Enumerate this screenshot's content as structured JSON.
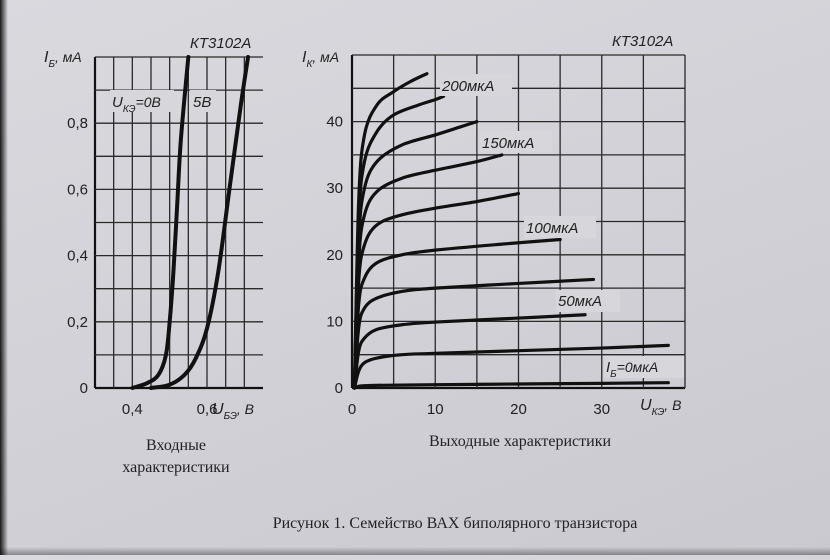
{
  "charts": {
    "input": {
      "model": "КТ3102А",
      "ylabel": "I",
      "ylabel_sub": "Б",
      "ylabel_unit": ", мА",
      "xlabel": "U",
      "xlabel_sub": "БЭ",
      "xlabel_unit": ", В",
      "caption_line1": "Входные",
      "caption_line2": "характеристики",
      "curve_label_0": "U",
      "curve_label_0_sub": "КЭ",
      "curve_label_0_val": "=0В",
      "curve_label_5": "5В",
      "yticks": [
        "0",
        "0,2",
        "0,4",
        "0,6",
        "0,8"
      ],
      "xticks": [
        "0,4",
        "0,6"
      ]
    },
    "output": {
      "model": "КТ3102А",
      "ylabel": "I",
      "ylabel_sub": "К",
      "ylabel_unit": ", мА",
      "xlabel": "U",
      "xlabel_sub": "КЭ",
      "xlabel_unit": ", В",
      "caption": "Выходные характеристики",
      "yticks": [
        "0",
        "10",
        "20",
        "30",
        "40"
      ],
      "xticks": [
        "0",
        "10",
        "20",
        "30"
      ],
      "labels": {
        "l200": "200мкА",
        "l150": "150мкА",
        "l100": "100мкА",
        "l50": "50мкА",
        "l0_prefix": "I",
        "l0_sub": "Б",
        "l0_suffix": "=0мкА"
      }
    }
  },
  "figure_caption": "Рисунок 1. Семейство ВАХ биполярного транзистора",
  "chart_data": [
    {
      "type": "line",
      "title": "КТ3102А",
      "xlabel": "UБЭ, В",
      "ylabel": "IБ, мА",
      "xlim": [
        0.3,
        0.75
      ],
      "ylim": [
        0,
        1.0
      ],
      "grid": true,
      "series": [
        {
          "name": "UКЭ=0В",
          "x": [
            0.4,
            0.44,
            0.47,
            0.49,
            0.5,
            0.51,
            0.52,
            0.53,
            0.55
          ],
          "y": [
            0.0,
            0.015,
            0.04,
            0.1,
            0.2,
            0.35,
            0.55,
            0.75,
            1.0
          ]
        },
        {
          "name": "5В",
          "x": [
            0.45,
            0.5,
            0.54,
            0.57,
            0.6,
            0.63,
            0.66,
            0.69,
            0.71
          ],
          "y": [
            0.0,
            0.01,
            0.04,
            0.09,
            0.18,
            0.35,
            0.6,
            0.85,
            1.0
          ]
        }
      ]
    },
    {
      "type": "line",
      "title": "КТ3102А",
      "xlabel": "UКЭ, В",
      "ylabel": "IК, мА",
      "xlim": [
        0,
        40
      ],
      "ylim": [
        0,
        50
      ],
      "grid": true,
      "series": [
        {
          "name": "IБ=0мкА",
          "x": [
            0.3,
            1,
            3,
            10,
            20,
            30,
            38
          ],
          "y": [
            0.0,
            0.3,
            0.4,
            0.5,
            0.6,
            0.7,
            0.8
          ]
        },
        {
          "name": "",
          "x": [
            0.3,
            0.8,
            1.5,
            3,
            6,
            10,
            20,
            30,
            38
          ],
          "y": [
            0.0,
            2.5,
            3.8,
            4.5,
            5.0,
            5.2,
            5.6,
            6.0,
            6.4
          ]
        },
        {
          "name": "50мкА",
          "x": [
            0.3,
            0.8,
            1.5,
            3,
            6,
            10,
            20,
            28
          ],
          "y": [
            0.0,
            5.5,
            7.5,
            8.8,
            9.5,
            9.9,
            10.5,
            11.0
          ]
        },
        {
          "name": "",
          "x": [
            0.3,
            0.8,
            1.5,
            3,
            6,
            10,
            20,
            29
          ],
          "y": [
            0.0,
            9.0,
            12.0,
            13.5,
            14.5,
            15.0,
            15.7,
            16.3
          ]
        },
        {
          "name": "100мкА",
          "x": [
            0.3,
            0.8,
            1.5,
            3,
            6,
            10,
            18,
            25
          ],
          "y": [
            0.0,
            12.5,
            16.5,
            18.8,
            20.0,
            20.7,
            21.6,
            22.3
          ]
        },
        {
          "name": "",
          "x": [
            0.3,
            0.8,
            1.5,
            3,
            6,
            10,
            15,
            20
          ],
          "y": [
            0.0,
            16.0,
            21.5,
            24.5,
            26.0,
            27.0,
            28.0,
            29.2
          ]
        },
        {
          "name": "150мкА",
          "x": [
            0.3,
            0.8,
            1.5,
            3,
            6,
            10,
            15,
            18
          ],
          "y": [
            0.0,
            19.0,
            26.0,
            29.5,
            31.5,
            32.7,
            34.0,
            35.0
          ]
        },
        {
          "name": "",
          "x": [
            0.3,
            0.8,
            1.5,
            3,
            6,
            10,
            13,
            15
          ],
          "y": [
            0.0,
            22.0,
            30.0,
            34.0,
            36.5,
            38.0,
            39.2,
            40.0
          ]
        },
        {
          "name": "200мкА",
          "x": [
            0.3,
            0.8,
            1.5,
            3,
            5,
            8,
            10,
            11
          ],
          "y": [
            0.0,
            25.0,
            34.0,
            38.5,
            41.0,
            42.5,
            43.3,
            43.8
          ]
        },
        {
          "name": "",
          "x": [
            0.3,
            0.8,
            1.5,
            3,
            5,
            7,
            9
          ],
          "y": [
            0.0,
            28.0,
            38.0,
            42.5,
            44.5,
            46.0,
            47.2
          ]
        }
      ]
    }
  ]
}
